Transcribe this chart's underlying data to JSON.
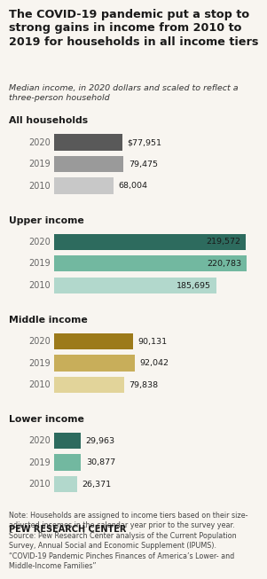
{
  "title": "The COVID-19 pandemic put a stop to\nstrong gains in income from 2010 to\n2019 for households in all income tiers",
  "subtitle": "Median income, in 2020 dollars and scaled to reflect a\nthree-person household",
  "sections": [
    {
      "label": "All households",
      "years": [
        "2020",
        "2019",
        "2010"
      ],
      "values": [
        77951,
        79475,
        68004
      ],
      "labels": [
        "$77,951",
        "79,475",
        "68,004"
      ],
      "colors": [
        "#595959",
        "#9a9a9a",
        "#c8c8c8"
      ],
      "label_inside": [
        false,
        false,
        false
      ]
    },
    {
      "label": "Upper income",
      "years": [
        "2020",
        "2019",
        "2010"
      ],
      "values": [
        219572,
        220783,
        185695
      ],
      "labels": [
        "219,572",
        "220,783",
        "185,695"
      ],
      "colors": [
        "#2d6b5e",
        "#72b8a0",
        "#b2d8cc"
      ],
      "label_inside": [
        true,
        true,
        true
      ]
    },
    {
      "label": "Middle income",
      "years": [
        "2020",
        "2019",
        "2010"
      ],
      "values": [
        90131,
        92042,
        79838
      ],
      "labels": [
        "90,131",
        "92,042",
        "79,838"
      ],
      "colors": [
        "#9c7a1a",
        "#c8ae5a",
        "#e2d49a"
      ],
      "label_inside": [
        false,
        false,
        false
      ]
    },
    {
      "label": "Lower income",
      "years": [
        "2020",
        "2019",
        "2010"
      ],
      "values": [
        29963,
        30877,
        26371
      ],
      "labels": [
        "29,963",
        "30,877",
        "26,371"
      ],
      "colors": [
        "#2d6b5e",
        "#72b8a0",
        "#b2d8cc"
      ],
      "label_inside": [
        false,
        false,
        false
      ]
    }
  ],
  "note": "Note: Households are assigned to income tiers based on their size-\nadjusted incomes in the calendar year prior to the survey year.\nSource: Pew Research Center analysis of the Current Population\nSurvey, Annual Social and Economic Supplement (IPUMS).\n“COVID-19 Pandemic Pinches Finances of America’s Lower- and\nMiddle-Income Families”",
  "footer": "PEW RESEARCH CENTER",
  "bg_color": "#f8f5f0",
  "max_value": 232000
}
